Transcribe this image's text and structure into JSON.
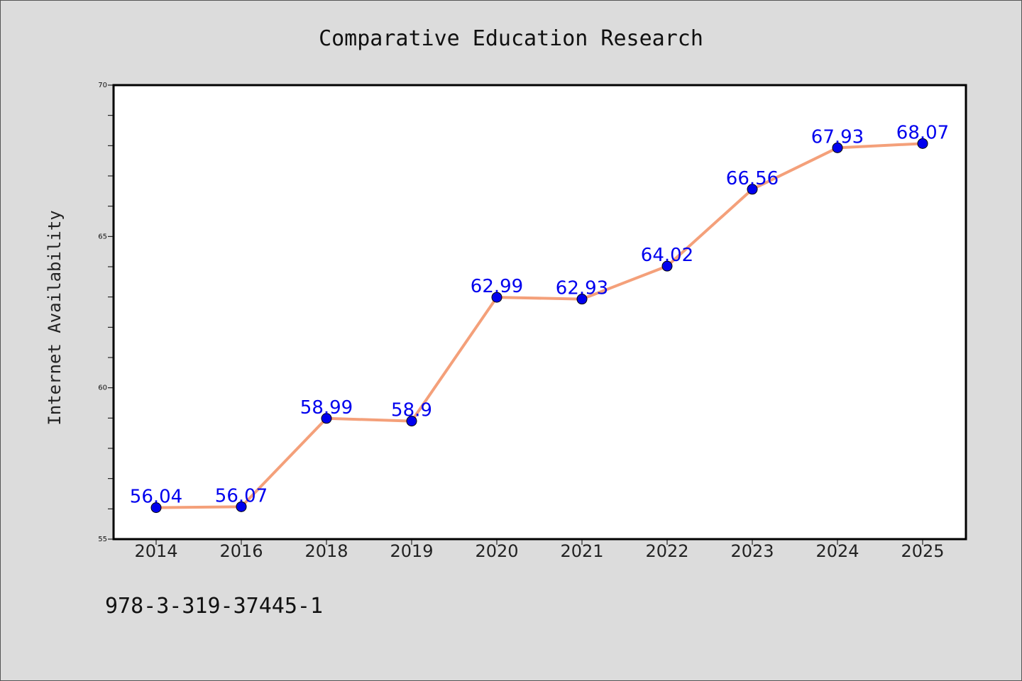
{
  "chart_data": {
    "type": "line",
    "title": "Comparative Education Research",
    "xlabel": "",
    "ylabel": "Internet Availability",
    "categories": [
      "2014",
      "2016",
      "2018",
      "2019",
      "2020",
      "2021",
      "2022",
      "2023",
      "2024",
      "2025"
    ],
    "series": [
      {
        "values": [
          56.04,
          56.07,
          58.99,
          58.9,
          62.99,
          62.93,
          64.02,
          66.56,
          67.93,
          68.07
        ],
        "data_labels": [
          "56.04",
          "56.07",
          "58.99",
          "58.9",
          "62.99",
          "62.93",
          "64.02",
          "66.56",
          "67.93",
          "68.07"
        ],
        "line_color": "#f4a07a",
        "marker_color": "#0000ee"
      }
    ],
    "ylim": [
      55,
      70
    ],
    "yticks": [
      "55",
      "60",
      "65",
      "70"
    ],
    "grid": false,
    "legend": "none"
  },
  "footer": {
    "isbn": "978-3-319-37445-1"
  },
  "colors": {
    "background": "#dcdcdc",
    "plot_background": "#ffffff",
    "data_label": "#0000ee"
  }
}
